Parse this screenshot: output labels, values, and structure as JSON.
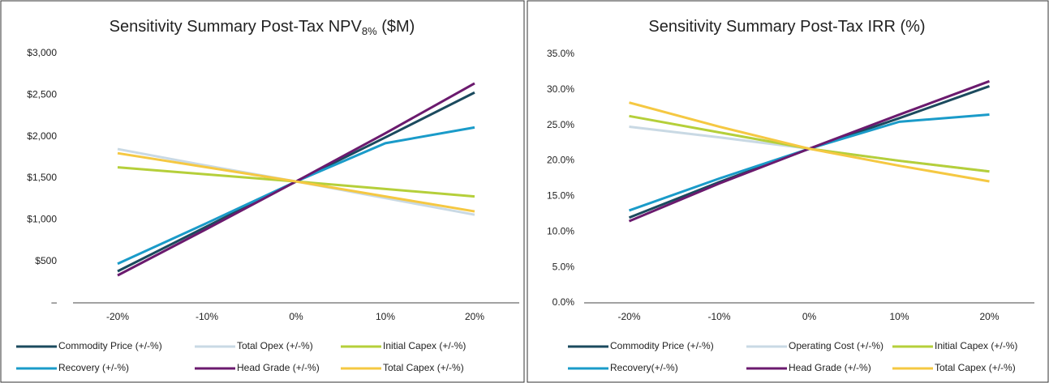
{
  "chart_data": [
    {
      "type": "line",
      "title": "Sensitivity Summary Post-Tax NPV",
      "title_subscript": "8%",
      "title_suffix": " ($M)",
      "categories": [
        "-20%",
        "-10%",
        "0%",
        "10%",
        "20%"
      ],
      "ylim": [
        0,
        3000
      ],
      "yticks": [
        {
          "value": 0,
          "label": "–"
        },
        {
          "value": 500,
          "label": "$500"
        },
        {
          "value": 1000,
          "label": "$1,000"
        },
        {
          "value": 1500,
          "label": "$1,500"
        },
        {
          "value": 2000,
          "label": "$2,000"
        },
        {
          "value": 2500,
          "label": "$2,500"
        },
        {
          "value": 3000,
          "label": "$3,000"
        }
      ],
      "grid": false,
      "series": [
        {
          "name": "Commodity Price (+/-%)",
          "color": "#1b4a5e",
          "values": [
            380,
            920,
            1460,
            1990,
            2530
          ]
        },
        {
          "name": "Total Opex (+/-%)",
          "color": "#c9d9e4",
          "values": [
            1850,
            1650,
            1460,
            1260,
            1060
          ]
        },
        {
          "name": "Initial Capex (+/-%)",
          "color": "#b5cf3a",
          "values": [
            1630,
            1545,
            1460,
            1370,
            1280
          ]
        },
        {
          "name": "Recovery (+/-%)",
          "color": "#1a9bc9",
          "values": [
            470,
            960,
            1460,
            1920,
            2110
          ]
        },
        {
          "name": "Head Grade (+/-%)",
          "color": "#6b1a6e",
          "values": [
            330,
            890,
            1460,
            2040,
            2640
          ]
        },
        {
          "name": "Total Capex (+/-%)",
          "color": "#f5c842",
          "values": [
            1800,
            1630,
            1460,
            1280,
            1100
          ]
        }
      ]
    },
    {
      "type": "line",
      "title": "Sensitivity Summary Post-Tax IRR (%)",
      "categories": [
        "-20%",
        "-10%",
        "0%",
        "10%",
        "20%"
      ],
      "ylim": [
        0,
        35
      ],
      "yticks": [
        {
          "value": 0,
          "label": "0.0%"
        },
        {
          "value": 5,
          "label": "5.0%"
        },
        {
          "value": 10,
          "label": "10.0%"
        },
        {
          "value": 15,
          "label": "15.0%"
        },
        {
          "value": 20,
          "label": "20.0%"
        },
        {
          "value": 25,
          "label": "25.0%"
        },
        {
          "value": 30,
          "label": "30.0%"
        },
        {
          "value": 35,
          "label": "35.0%"
        }
      ],
      "grid": false,
      "series": [
        {
          "name": "Commodity Price (+/-%)",
          "color": "#1b4a5e",
          "values": [
            12.0,
            17.0,
            21.7,
            26.0,
            30.5
          ]
        },
        {
          "name": "Operating Cost (+/-%)",
          "color": "#c9d9e4",
          "values": [
            24.8,
            23.3,
            21.7,
            20.0,
            18.5
          ]
        },
        {
          "name": "Initial Capex (+/-%)",
          "color": "#b5cf3a",
          "values": [
            26.3,
            24.0,
            21.7,
            20.0,
            18.5
          ]
        },
        {
          "name": "Recovery(+/-%)",
          "color": "#1a9bc9",
          "values": [
            13.0,
            17.5,
            21.7,
            25.5,
            26.5
          ]
        },
        {
          "name": "Head Grade (+/-%)",
          "color": "#6b1a6e",
          "values": [
            11.5,
            16.8,
            21.7,
            26.5,
            31.2
          ]
        },
        {
          "name": "Total Capex (+/-%)",
          "color": "#f5c842",
          "values": [
            28.2,
            24.8,
            21.7,
            19.3,
            17.1
          ]
        }
      ]
    }
  ]
}
